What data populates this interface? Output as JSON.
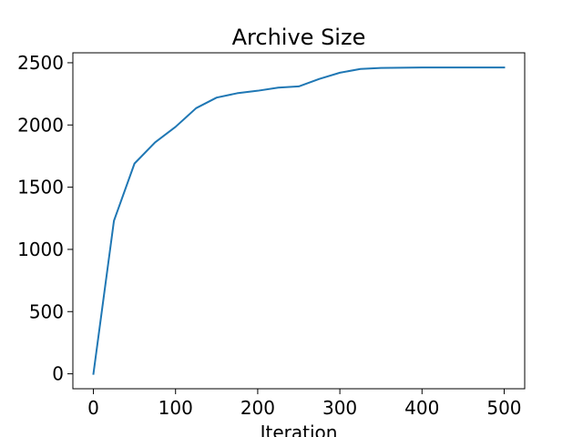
{
  "chart_data": {
    "type": "line",
    "title": "Archive Size",
    "xlabel": "Iteration",
    "ylabel": "",
    "xlim": [
      -25,
      525
    ],
    "ylim": [
      -120,
      2580
    ],
    "xticks": [
      0,
      100,
      200,
      300,
      400,
      500
    ],
    "yticks": [
      0,
      500,
      1000,
      1500,
      2000,
      2500
    ],
    "grid": false,
    "series": [
      {
        "color": "#1f77b4",
        "x": [
          0,
          25,
          50,
          75,
          100,
          125,
          150,
          175,
          200,
          225,
          250,
          275,
          300,
          325,
          350,
          375,
          400,
          425,
          450,
          475,
          500
        ],
        "y": [
          0,
          1230,
          1690,
          1860,
          1985,
          2135,
          2220,
          2255,
          2275,
          2300,
          2310,
          2370,
          2420,
          2450,
          2458,
          2460,
          2462,
          2462,
          2462,
          2462,
          2462
        ]
      }
    ]
  }
}
